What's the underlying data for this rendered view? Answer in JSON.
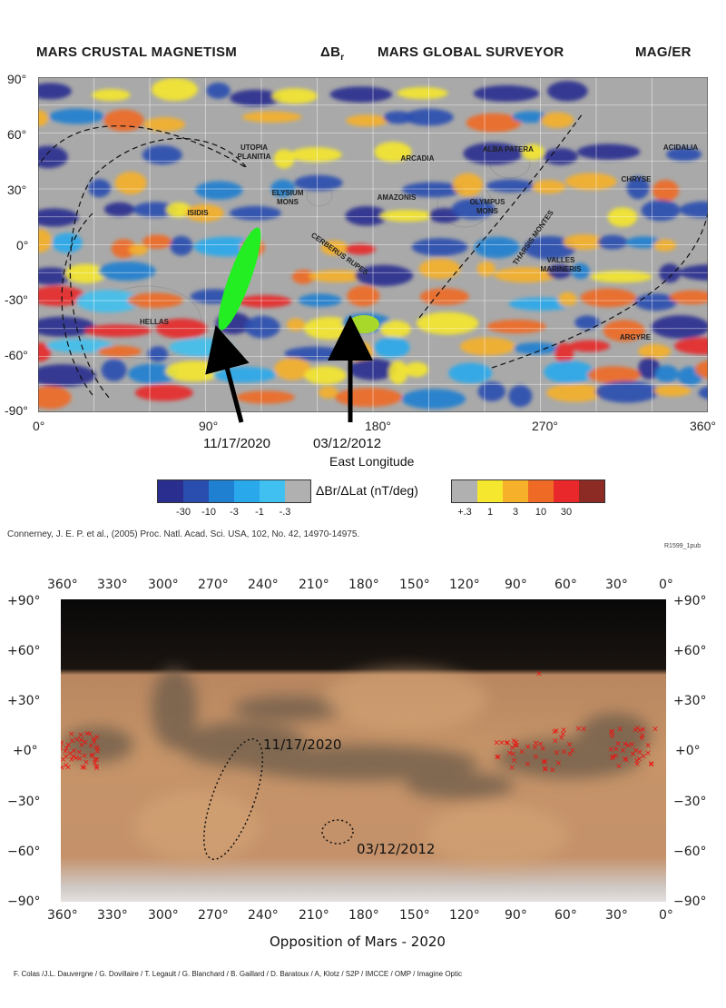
{
  "top_figure": {
    "header": {
      "left": "MARS CRUSTAL MAGNETISM",
      "delta": "ΔB",
      "delta_sub": "r",
      "center": "MARS GLOBAL SURVEYOR",
      "right": "MAG/ER"
    },
    "lat_ticks": [
      "90°",
      "60°",
      "30°",
      "0°",
      "-30°",
      "-60°",
      "-90°"
    ],
    "lon_ticks": [
      "0°",
      "90°",
      "180°",
      "270°",
      "360°"
    ],
    "x_axis_label": "East Longitude",
    "region_labels": [
      {
        "text": "UTOPIA\nPLANITIA"
      },
      {
        "text": "ARCADIA"
      },
      {
        "text": "ALBA PATERA"
      },
      {
        "text": "ACIDALIA"
      },
      {
        "text": "ELYSIUM\nMONS"
      },
      {
        "text": "AMAZONIS"
      },
      {
        "text": "OLYMPUS\nMONS"
      },
      {
        "text": "CHRYSE"
      },
      {
        "text": "ISIDIS"
      },
      {
        "text": "CERBERUS RUPES"
      },
      {
        "text": "THARSIS MONTES"
      },
      {
        "text": "VALLES\nMARINERIS"
      },
      {
        "text": "HELLAS"
      },
      {
        "text": "ARGYRE"
      }
    ],
    "annotations": [
      {
        "label": "11/17/2020",
        "color": "#22ee22"
      },
      {
        "label": "03/12/2012",
        "color": "#a8d82a"
      }
    ],
    "colorbar": {
      "label": "ΔBr/ΔLat (nT/deg)",
      "negative": [
        {
          "label": "-30",
          "color": "#2a2e8f"
        },
        {
          "label": "-10",
          "color": "#2a4eb0"
        },
        {
          "label": "-3",
          "color": "#1f7fd0"
        },
        {
          "label": "-1",
          "color": "#2aa8ec"
        },
        {
          "label": "-.3",
          "color": "#40c0f0"
        }
      ],
      "positive": [
        {
          "label": "+.3",
          "color": "#b0b0b0"
        },
        {
          "label": "1",
          "color": "#f5e72e"
        },
        {
          "label": "3",
          "color": "#f6b02a"
        },
        {
          "label": "10",
          "color": "#ef6a24"
        },
        {
          "label": "30",
          "color": "#e8282a"
        }
      ],
      "extra_color": "#8c2a24"
    },
    "citation": "Connerney, J. E. P. et al., (2005) Proc. Natl. Acad. Sci. USA, 102, No. 42, 14970-14975.",
    "code": "R1599_1pub"
  },
  "bottom_figure": {
    "top_ticks": [
      "360°",
      "330°",
      "300°",
      "270°",
      "240°",
      "210°",
      "180°",
      "150°",
      "120°",
      "90°",
      "60°",
      "30°",
      "0°"
    ],
    "bottom_ticks": [
      "360°",
      "330°",
      "300°",
      "270°",
      "240°",
      "210°",
      "180°",
      "150°",
      "120°",
      "90°",
      "60°",
      "30°",
      "0°"
    ],
    "lat_ticks": [
      "+90°",
      "+60°",
      "+30°",
      "+0°",
      "−30°",
      "−60°",
      "−90°"
    ],
    "annotations": [
      {
        "label": "11/17/2020"
      },
      {
        "label": "03/12/2012"
      }
    ],
    "title": "Opposition of Mars - 2020",
    "credit": "F. Colas /J.L. Dauvergne / G. Dovillaire / T. Legault / G. Blanchard / B. Gaillard / D. Baratoux / A, Klotz / S2P / IMCCE / OMP / Imagine Optic",
    "marker_color": "#ee1111"
  }
}
